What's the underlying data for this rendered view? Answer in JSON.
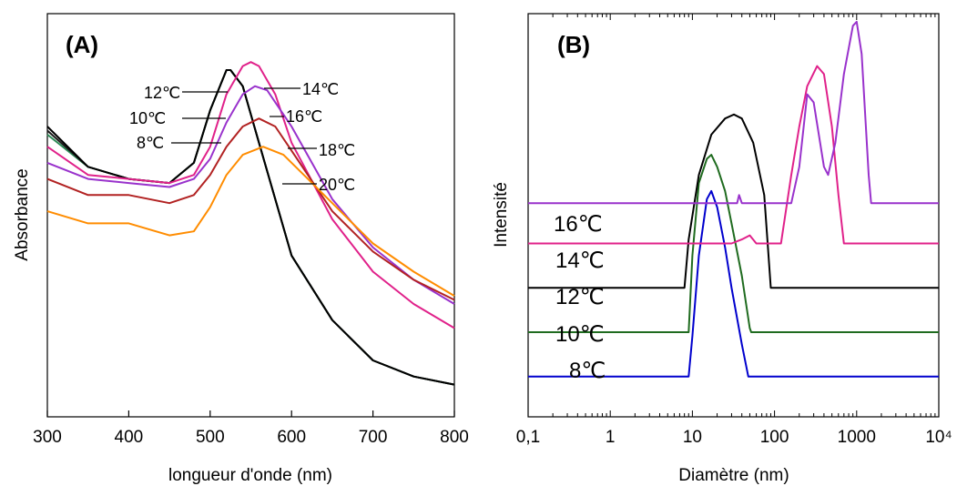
{
  "chart_data": [
    {
      "panel": "(A)",
      "type": "line",
      "xlabel": "longueur d'onde (nm)",
      "ylabel": "Absorbance",
      "xlim": [
        300,
        800
      ],
      "ylim": [
        0,
        1
      ],
      "xticks": [
        "300",
        "400",
        "500",
        "600",
        "700",
        "800"
      ],
      "grid": false,
      "series": [
        {
          "name": "8℃",
          "color": "#2e8b57",
          "x": [
            300,
            350,
            400,
            450,
            480,
            500,
            520,
            525,
            540,
            560,
            600,
            650,
            700,
            750,
            800
          ],
          "y": [
            0.7,
            0.62,
            0.59,
            0.58,
            0.63,
            0.76,
            0.86,
            0.86,
            0.82,
            0.68,
            0.4,
            0.24,
            0.14,
            0.1,
            0.08
          ]
        },
        {
          "name": "10℃",
          "color": "#1a1a1a",
          "x": [
            300,
            350,
            400,
            450,
            480,
            500,
            520,
            525,
            540,
            560,
            600,
            650,
            700,
            750,
            800
          ],
          "y": [
            0.71,
            0.62,
            0.59,
            0.58,
            0.63,
            0.76,
            0.86,
            0.86,
            0.82,
            0.68,
            0.4,
            0.24,
            0.14,
            0.1,
            0.08
          ]
        },
        {
          "name": "12℃",
          "color": "#000000",
          "x": [
            300,
            350,
            400,
            450,
            480,
            500,
            520,
            525,
            540,
            560,
            600,
            650,
            700,
            750,
            800
          ],
          "y": [
            0.72,
            0.62,
            0.59,
            0.58,
            0.63,
            0.76,
            0.86,
            0.86,
            0.82,
            0.68,
            0.4,
            0.24,
            0.14,
            0.1,
            0.08
          ]
        },
        {
          "name": "14℃",
          "color": "#e0218a",
          "x": [
            300,
            350,
            400,
            450,
            480,
            500,
            520,
            540,
            550,
            560,
            580,
            600,
            650,
            700,
            750,
            800
          ],
          "y": [
            0.67,
            0.6,
            0.59,
            0.58,
            0.6,
            0.67,
            0.8,
            0.87,
            0.88,
            0.87,
            0.8,
            0.68,
            0.49,
            0.36,
            0.28,
            0.22
          ]
        },
        {
          "name": "16℃",
          "color": "#9932cc",
          "x": [
            300,
            350,
            400,
            450,
            480,
            500,
            520,
            540,
            555,
            570,
            600,
            650,
            700,
            750,
            800
          ],
          "y": [
            0.63,
            0.59,
            0.58,
            0.57,
            0.59,
            0.64,
            0.73,
            0.8,
            0.82,
            0.81,
            0.72,
            0.54,
            0.42,
            0.34,
            0.28
          ]
        },
        {
          "name": "18℃",
          "color": "#b22222",
          "x": [
            300,
            350,
            400,
            450,
            480,
            500,
            520,
            540,
            560,
            580,
            600,
            650,
            700,
            750,
            800
          ],
          "y": [
            0.59,
            0.55,
            0.55,
            0.53,
            0.55,
            0.6,
            0.67,
            0.72,
            0.74,
            0.72,
            0.66,
            0.51,
            0.41,
            0.34,
            0.29
          ]
        },
        {
          "name": "20℃",
          "color": "#ff8c00",
          "x": [
            300,
            350,
            400,
            450,
            480,
            500,
            520,
            540,
            565,
            590,
            620,
            650,
            700,
            750,
            800
          ],
          "y": [
            0.51,
            0.48,
            0.48,
            0.45,
            0.46,
            0.52,
            0.6,
            0.65,
            0.67,
            0.65,
            0.59,
            0.53,
            0.43,
            0.36,
            0.3
          ]
        }
      ],
      "annotations": [
        "12℃",
        "10℃",
        "8℃",
        "14℃",
        "16℃",
        "18℃",
        "20℃"
      ]
    },
    {
      "panel": "(B)",
      "type": "line",
      "xscale": "log",
      "xlabel": "Diamètre (nm)",
      "ylabel": "Intensité",
      "xlim": [
        0.1,
        10000
      ],
      "ylim": [
        0,
        1
      ],
      "xticks": [
        "0,1",
        "1",
        "10",
        "100",
        "1000",
        "10⁴"
      ],
      "grid": false,
      "series": [
        {
          "name": "8℃",
          "color": "#0000cd",
          "baseline": 0.1,
          "x": [
            0.1,
            9,
            10,
            12,
            15,
            17,
            20,
            25,
            30,
            40,
            48,
            50,
            10000
          ],
          "y": [
            0.1,
            0.1,
            0.2,
            0.4,
            0.54,
            0.56,
            0.52,
            0.42,
            0.32,
            0.18,
            0.1,
            0.1,
            0.1
          ]
        },
        {
          "name": "10℃",
          "color": "#1f6b1f",
          "baseline": 0.21,
          "x": [
            0.1,
            9,
            10,
            12,
            15,
            17,
            20,
            25,
            30,
            40,
            50,
            52,
            10000
          ],
          "y": [
            0.21,
            0.21,
            0.4,
            0.58,
            0.64,
            0.65,
            0.62,
            0.56,
            0.48,
            0.35,
            0.22,
            0.21,
            0.21
          ]
        },
        {
          "name": "12℃",
          "color": "#000000",
          "baseline": 0.32,
          "x": [
            0.1,
            8,
            9,
            12,
            17,
            25,
            32,
            40,
            55,
            75,
            90,
            10000
          ],
          "y": [
            0.32,
            0.32,
            0.44,
            0.6,
            0.7,
            0.74,
            0.75,
            0.74,
            0.68,
            0.55,
            0.32,
            0.32
          ]
        },
        {
          "name": "14℃",
          "color": "#e0218a",
          "baseline": 0.43,
          "x": [
            0.1,
            30,
            40,
            50,
            60,
            120,
            160,
            200,
            250,
            330,
            400,
            500,
            600,
            700,
            10000
          ],
          "y": [
            0.43,
            0.43,
            0.44,
            0.45,
            0.43,
            0.43,
            0.6,
            0.72,
            0.82,
            0.87,
            0.85,
            0.72,
            0.55,
            0.43,
            0.43
          ]
        },
        {
          "name": "16℃",
          "color": "#9932cc",
          "baseline": 0.53,
          "x": [
            0.1,
            35,
            37,
            40,
            160,
            200,
            250,
            300,
            400,
            450,
            550,
            700,
            900,
            1000,
            1150,
            1400,
            1500,
            10000
          ],
          "y": [
            0.53,
            0.53,
            0.55,
            0.53,
            0.53,
            0.62,
            0.8,
            0.78,
            0.62,
            0.6,
            0.68,
            0.85,
            0.97,
            0.98,
            0.9,
            0.6,
            0.53,
            0.53
          ]
        }
      ],
      "labels": [
        "16℃",
        "14℃",
        "12℃",
        "10℃",
        "8℃"
      ]
    }
  ]
}
